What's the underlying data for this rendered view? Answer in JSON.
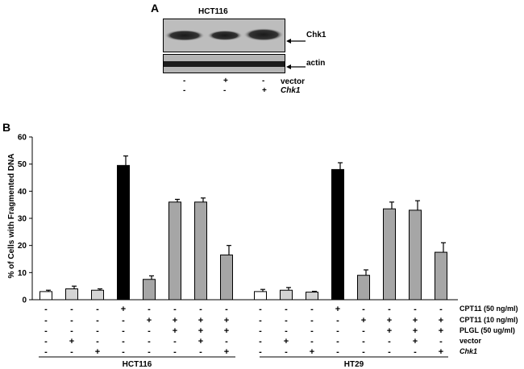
{
  "panel_a": {
    "label": "A",
    "cell_line": "HCT116",
    "bands": [
      "Chk1",
      "actin"
    ],
    "conditions": [
      {
        "name": "vector",
        "signs": [
          "-",
          "+",
          "-"
        ]
      },
      {
        "name": "Chk1",
        "signs": [
          "-",
          "-",
          "+"
        ]
      }
    ]
  },
  "panel_b": {
    "label": "B"
  },
  "chart_data": {
    "type": "bar",
    "title": "",
    "xlabel": "",
    "ylabel": "% of Cells with Fragmented DNA",
    "ylim": [
      0,
      60
    ],
    "yticks": [
      "0",
      "10",
      "20",
      "30",
      "40",
      "50",
      "60"
    ],
    "groups": [
      {
        "name": "HCT116",
        "values": [
          3,
          4,
          3.5,
          49.5,
          7.5,
          36,
          36,
          16.5
        ],
        "errors": [
          0.5,
          1,
          0.5,
          3.5,
          1.3,
          1,
          1.5,
          3.5
        ],
        "fills": [
          "white",
          "light",
          "light",
          "black",
          "gray",
          "gray",
          "gray",
          "gray"
        ]
      },
      {
        "name": "HT29",
        "values": [
          3,
          3.5,
          2.8,
          48,
          9,
          33.5,
          33,
          17.5
        ],
        "errors": [
          0.8,
          1,
          0.3,
          2.5,
          2,
          2.5,
          3.5,
          3.5
        ],
        "fills": [
          "white",
          "light",
          "light",
          "black",
          "gray",
          "gray",
          "gray",
          "gray"
        ]
      }
    ],
    "conditions": [
      {
        "name": "CPT11 (50 ng/ml)",
        "signs": [
          "-",
          "-",
          "-",
          "+",
          "-",
          "-",
          "-",
          "-"
        ]
      },
      {
        "name": "CPT11 (10 ng/ml)",
        "signs": [
          "-",
          "-",
          "-",
          "-",
          "+",
          "+",
          "+",
          "+"
        ]
      },
      {
        "name": "PLGL (50 ug/ml)",
        "signs": [
          "-",
          "-",
          "-",
          "-",
          "-",
          "+",
          "+",
          "+"
        ]
      },
      {
        "name": "vector",
        "signs": [
          "-",
          "+",
          "-",
          "-",
          "-",
          "-",
          "+",
          "-"
        ]
      },
      {
        "name": "Chk1",
        "signs": [
          "-",
          "-",
          "+",
          "-",
          "-",
          "-",
          "-",
          "+"
        ]
      }
    ],
    "colors": {
      "white": "#ffffff",
      "light": "#d4d4d4",
      "black": "#000000",
      "gray": "#a6a6a6"
    }
  }
}
